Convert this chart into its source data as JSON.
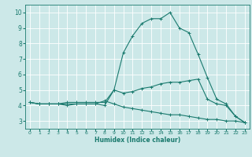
{
  "xlabel": "Humidex (Indice chaleur)",
  "ylabel": "",
  "xlim": [
    -0.5,
    23.5
  ],
  "ylim": [
    2.5,
    10.5
  ],
  "bg_color": "#cce8e8",
  "line_color": "#1a7a6e",
  "grid_color": "#ffffff",
  "x_ticks": [
    0,
    1,
    2,
    3,
    4,
    5,
    6,
    7,
    8,
    9,
    10,
    11,
    12,
    13,
    14,
    15,
    16,
    17,
    18,
    19,
    20,
    21,
    22,
    23
  ],
  "y_ticks": [
    3,
    4,
    5,
    6,
    7,
    8,
    9,
    10
  ],
  "curve1_x": [
    0,
    1,
    2,
    3,
    4,
    5,
    6,
    7,
    8,
    9,
    10,
    11,
    12,
    13,
    14,
    15,
    16,
    17,
    18,
    19,
    20,
    21,
    22,
    23
  ],
  "curve1_y": [
    4.2,
    4.1,
    4.1,
    4.1,
    4.1,
    4.1,
    4.1,
    4.1,
    4.0,
    5.0,
    4.8,
    4.9,
    5.1,
    5.2,
    5.4,
    5.5,
    5.5,
    5.6,
    5.7,
    4.4,
    4.1,
    4.0,
    3.3,
    2.9
  ],
  "curve2_x": [
    0,
    1,
    2,
    3,
    4,
    5,
    6,
    7,
    8,
    9,
    10,
    11,
    12,
    13,
    14,
    15,
    16,
    17,
    18,
    19,
    20,
    21,
    22,
    23
  ],
  "curve2_y": [
    4.2,
    4.1,
    4.1,
    4.1,
    4.0,
    4.1,
    4.1,
    4.1,
    4.3,
    4.1,
    3.9,
    3.8,
    3.7,
    3.6,
    3.5,
    3.4,
    3.4,
    3.3,
    3.2,
    3.1,
    3.1,
    3.0,
    3.0,
    2.9
  ],
  "curve3_x": [
    0,
    1,
    2,
    3,
    4,
    5,
    6,
    7,
    8,
    9,
    10,
    11,
    12,
    13,
    14,
    15,
    16,
    17,
    18,
    19,
    20,
    21,
    22,
    23
  ],
  "curve3_y": [
    4.2,
    4.1,
    4.1,
    4.1,
    4.2,
    4.2,
    4.2,
    4.2,
    4.2,
    5.0,
    7.4,
    8.5,
    9.3,
    9.6,
    9.6,
    10.0,
    9.0,
    8.7,
    7.3,
    5.8,
    4.4,
    4.1,
    3.3,
    2.9
  ],
  "marker": "+",
  "markersize": 3,
  "linewidth": 0.8,
  "tick_fontsize_x": 4.5,
  "tick_fontsize_y": 5.5,
  "xlabel_fontsize": 5.5
}
